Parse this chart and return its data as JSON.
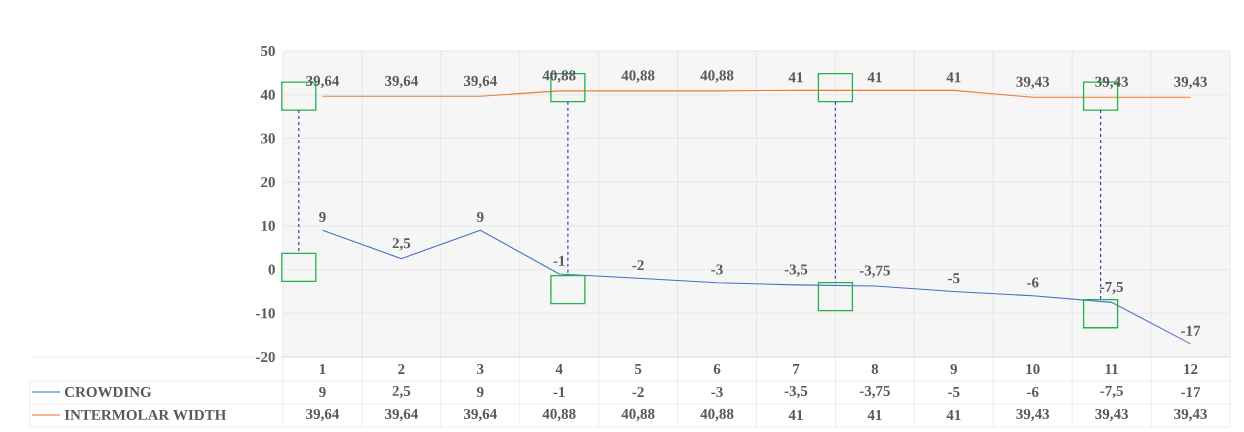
{
  "chart_data": {
    "type": "line",
    "categories": [
      "1",
      "2",
      "3",
      "4",
      "5",
      "6",
      "7",
      "8",
      "9",
      "10",
      "11",
      "12"
    ],
    "series": [
      {
        "name": "CROWDING",
        "color": "#4472c4",
        "values": [
          9,
          2.5,
          9,
          -1,
          -2,
          -3,
          -3.5,
          -3.75,
          -5,
          -6,
          -7.5,
          -17
        ],
        "value_labels": [
          "9",
          "2,5",
          "9",
          "-1",
          "-2",
          "-3",
          "-3,5",
          "-3,75",
          "-5",
          "-6",
          "-7,5",
          "-17"
        ]
      },
      {
        "name": "INTERMOLAR WIDTH",
        "color": "#ed7d31",
        "values": [
          39.64,
          39.64,
          39.64,
          40.88,
          40.88,
          40.88,
          41,
          41,
          41,
          39.43,
          39.43,
          39.43
        ],
        "value_labels": [
          "39,64",
          "39,64",
          "39,64",
          "40,88",
          "40,88",
          "40,88",
          "41",
          "41",
          "41",
          "39,43",
          "39,43",
          "39,43"
        ]
      }
    ],
    "ylim": [
      -20,
      50
    ],
    "yticks": [
      -20,
      -10,
      0,
      10,
      20,
      30,
      40,
      50
    ],
    "grid": true,
    "legend": "bottom"
  }
}
